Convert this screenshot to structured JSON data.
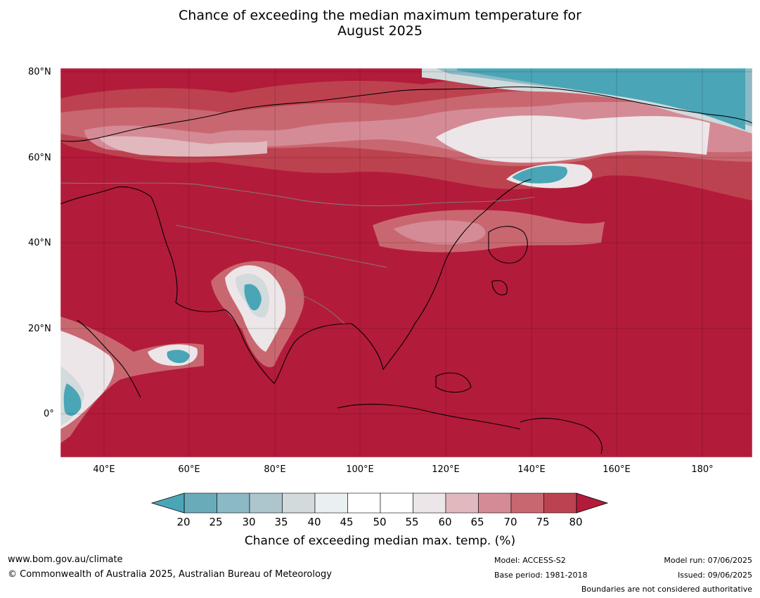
{
  "title_line1": "Chance of exceeding the median maximum temperature for",
  "title_line2": "August 2025",
  "lat_labels": [
    "80°N",
    "60°N",
    "40°N",
    "20°N",
    "0°"
  ],
  "lon_labels": [
    "40°E",
    "60°E",
    "80°E",
    "100°E",
    "120°E",
    "140°E",
    "160°E",
    "180°"
  ],
  "colorbar": {
    "ticks": [
      "20",
      "25",
      "30",
      "35",
      "40",
      "45",
      "50",
      "55",
      "60",
      "65",
      "70",
      "75",
      "80"
    ],
    "label": "Chance of exceeding median max. temp. (%)",
    "colors": [
      "#4aa5b6",
      "#6aabba",
      "#8bbac5",
      "#adc6cd",
      "#d2dadc",
      "#eaf0f1",
      "#ffffff",
      "#ffffff",
      "#ede6e8",
      "#e1b8be",
      "#d58b96",
      "#c96770",
      "#bd424f",
      "#b31b3a"
    ]
  },
  "map_colors": {
    "background": "#b31b3a",
    "level_75": "#bd424f",
    "level_70": "#c96770",
    "level_65": "#d58b96",
    "level_60": "#e1b8be",
    "level_55": "#ede6e8",
    "level_40": "#d2dadc",
    "level_30": "#8bbac5",
    "level_20": "#4aa5b6"
  },
  "footer": {
    "website": "www.bom.gov.au/climate",
    "copyright": "© Commonwealth of Australia 2025, Australian Bureau of Meteorology",
    "model": "Model: ACCESS-S2",
    "base_period": "Base period: 1981-2018",
    "model_run": "Model run: 07/06/2025",
    "issued": "Issued: 09/06/2025",
    "disclaimer": "Boundaries are not considered authoritative"
  }
}
